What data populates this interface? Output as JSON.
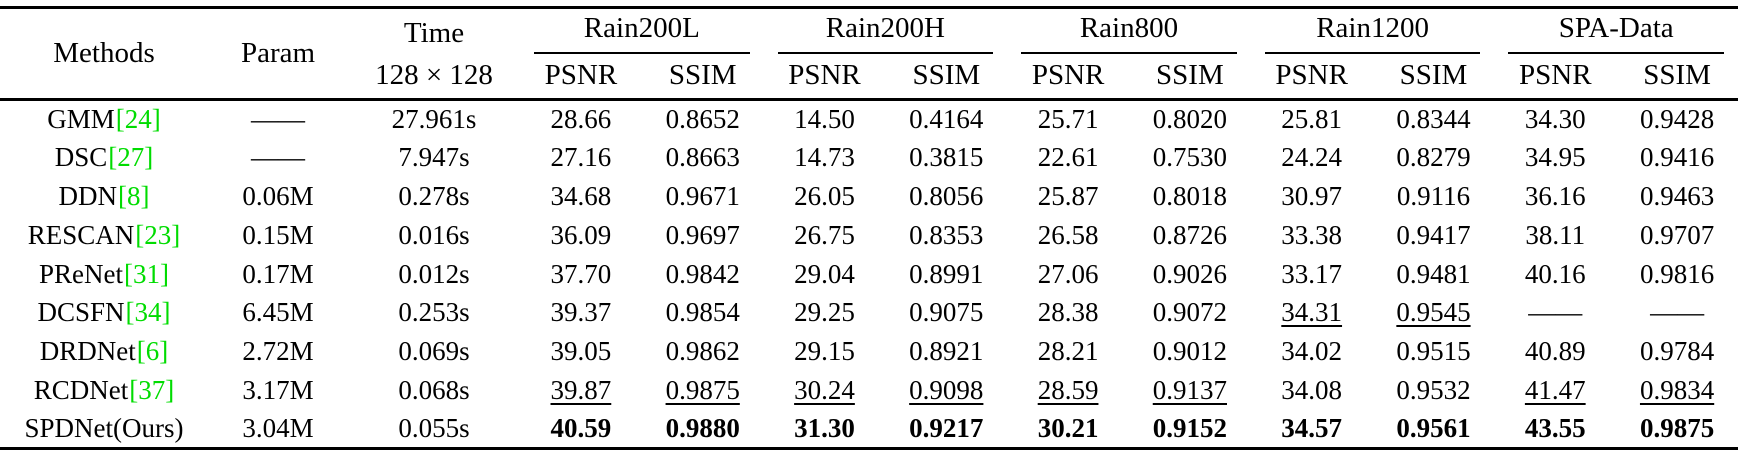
{
  "colors": {
    "citation_green": "#00DC00"
  },
  "header": {
    "methods": "Methods",
    "param": "Param",
    "time_top": "Time",
    "time_bottom": "128 × 128",
    "groups": [
      "Rain200L",
      "Rain200H",
      "Rain800",
      "Rain1200",
      "SPA-Data"
    ],
    "metric_psnr": "PSNR",
    "metric_ssim": "SSIM"
  },
  "rows": [
    {
      "method": "GMM",
      "cite": "[24]",
      "param": "——",
      "time": "27.961s",
      "values": [
        {
          "text": "28.66"
        },
        {
          "text": "0.8652"
        },
        {
          "text": "14.50"
        },
        {
          "text": "0.4164"
        },
        {
          "text": "25.71"
        },
        {
          "text": "0.8020"
        },
        {
          "text": "25.81"
        },
        {
          "text": "0.8344"
        },
        {
          "text": "34.30"
        },
        {
          "text": "0.9428"
        }
      ]
    },
    {
      "method": "DSC",
      "cite": "[27]",
      "param": "——",
      "time": "7.947s",
      "values": [
        {
          "text": "27.16"
        },
        {
          "text": "0.8663"
        },
        {
          "text": "14.73"
        },
        {
          "text": "0.3815"
        },
        {
          "text": "22.61"
        },
        {
          "text": "0.7530"
        },
        {
          "text": "24.24"
        },
        {
          "text": "0.8279"
        },
        {
          "text": "34.95"
        },
        {
          "text": "0.9416"
        }
      ]
    },
    {
      "method": "DDN",
      "cite": "[8]",
      "param": "0.06M",
      "time": "0.278s",
      "values": [
        {
          "text": "34.68"
        },
        {
          "text": "0.9671"
        },
        {
          "text": "26.05"
        },
        {
          "text": "0.8056"
        },
        {
          "text": "25.87"
        },
        {
          "text": "0.8018"
        },
        {
          "text": "30.97"
        },
        {
          "text": "0.9116"
        },
        {
          "text": "36.16"
        },
        {
          "text": "0.9463"
        }
      ]
    },
    {
      "method": "RESCAN",
      "cite": "[23]",
      "param": "0.15M",
      "time": "0.016s",
      "values": [
        {
          "text": "36.09"
        },
        {
          "text": "0.9697"
        },
        {
          "text": "26.75"
        },
        {
          "text": "0.8353"
        },
        {
          "text": "26.58"
        },
        {
          "text": "0.8726"
        },
        {
          "text": "33.38"
        },
        {
          "text": "0.9417"
        },
        {
          "text": "38.11"
        },
        {
          "text": "0.9707"
        }
      ]
    },
    {
      "method": "PReNet",
      "cite": "[31]",
      "param": "0.17M",
      "time": "0.012s",
      "values": [
        {
          "text": "37.70"
        },
        {
          "text": "0.9842"
        },
        {
          "text": "29.04"
        },
        {
          "text": "0.8991"
        },
        {
          "text": "27.06"
        },
        {
          "text": "0.9026"
        },
        {
          "text": "33.17"
        },
        {
          "text": "0.9481"
        },
        {
          "text": "40.16"
        },
        {
          "text": "0.9816"
        }
      ]
    },
    {
      "method": "DCSFN",
      "cite": "[34]",
      "param": "6.45M",
      "time": "0.253s",
      "values": [
        {
          "text": "39.37"
        },
        {
          "text": "0.9854"
        },
        {
          "text": "29.25"
        },
        {
          "text": "0.9075"
        },
        {
          "text": "28.38"
        },
        {
          "text": "0.9072"
        },
        {
          "text": "34.31",
          "style": "underline"
        },
        {
          "text": "0.9545",
          "style": "underline"
        },
        {
          "text": "——"
        },
        {
          "text": "——"
        }
      ]
    },
    {
      "method": "DRDNet",
      "cite": "[6]",
      "param": "2.72M",
      "time": "0.069s",
      "values": [
        {
          "text": "39.05"
        },
        {
          "text": "0.9862"
        },
        {
          "text": "29.15"
        },
        {
          "text": "0.8921"
        },
        {
          "text": "28.21"
        },
        {
          "text": "0.9012"
        },
        {
          "text": "34.02"
        },
        {
          "text": "0.9515"
        },
        {
          "text": "40.89"
        },
        {
          "text": "0.9784"
        }
      ]
    },
    {
      "method": "RCDNet",
      "cite": "[37]",
      "param": "3.17M",
      "time": "0.068s",
      "values": [
        {
          "text": "39.87",
          "style": "underline"
        },
        {
          "text": "0.9875",
          "style": "underline"
        },
        {
          "text": "30.24",
          "style": "underline"
        },
        {
          "text": "0.9098",
          "style": "underline"
        },
        {
          "text": "28.59",
          "style": "underline"
        },
        {
          "text": "0.9137",
          "style": "underline"
        },
        {
          "text": "34.08"
        },
        {
          "text": "0.9532"
        },
        {
          "text": "41.47",
          "style": "underline"
        },
        {
          "text": "0.9834",
          "style": "underline"
        }
      ]
    },
    {
      "method": "SPDNet(Ours)",
      "cite": "",
      "param": "3.04M",
      "time": "0.055s",
      "values": [
        {
          "text": "40.59",
          "style": "bold"
        },
        {
          "text": "0.9880",
          "style": "bold"
        },
        {
          "text": "31.30",
          "style": "bold"
        },
        {
          "text": "0.9217",
          "style": "bold"
        },
        {
          "text": "30.21",
          "style": "bold"
        },
        {
          "text": "0.9152",
          "style": "bold"
        },
        {
          "text": "34.57",
          "style": "bold"
        },
        {
          "text": "0.9561",
          "style": "bold"
        },
        {
          "text": "43.55",
          "style": "bold"
        },
        {
          "text": "0.9875",
          "style": "bold"
        }
      ]
    }
  ]
}
